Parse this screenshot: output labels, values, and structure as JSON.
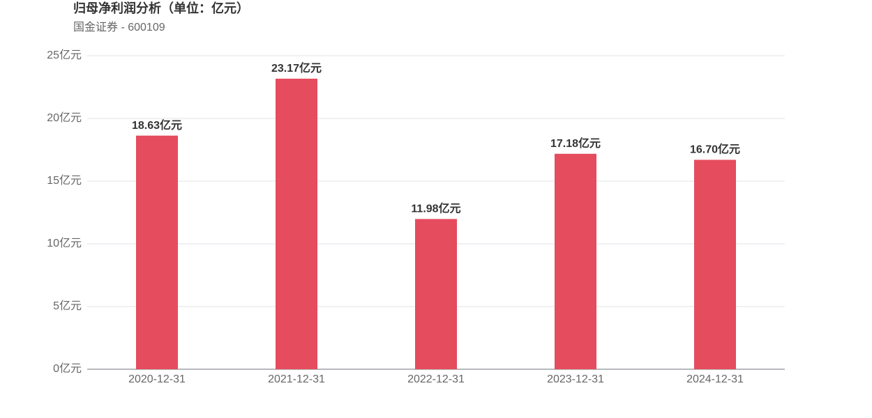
{
  "chart_data": {
    "type": "bar",
    "title": "归母净利润分析（单位：亿元）",
    "subtitle": "国金证券 - 600109",
    "categories": [
      "2020-12-31",
      "2021-12-31",
      "2022-12-31",
      "2023-12-31",
      "2024-12-31"
    ],
    "values": [
      18.63,
      23.17,
      11.98,
      17.18,
      16.7
    ],
    "value_labels": [
      "18.63亿元",
      "23.17亿元",
      "11.98亿元",
      "17.18亿元",
      "16.70亿元"
    ],
    "color": "#e54c5e",
    "ylim": [
      0,
      25
    ],
    "yticks": [
      {
        "value": 0,
        "label": "0亿元"
      },
      {
        "value": 5,
        "label": "5亿元"
      },
      {
        "value": 10,
        "label": "10亿元"
      },
      {
        "value": 15,
        "label": "15亿元"
      },
      {
        "value": 20,
        "label": "20亿元"
      },
      {
        "value": 25,
        "label": "25亿元"
      }
    ],
    "grid": true
  }
}
